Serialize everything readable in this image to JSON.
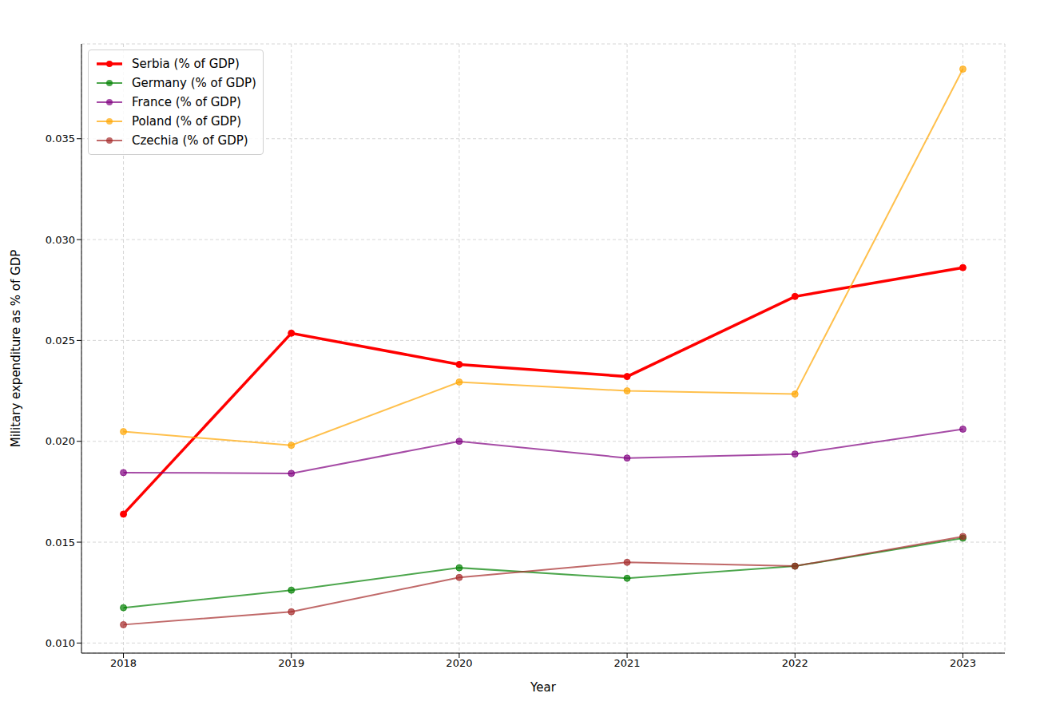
{
  "chart_data": {
    "type": "line",
    "x_label": "Year",
    "y_label": "Military expenditure as % of GDP",
    "x": [
      2018,
      2019,
      2020,
      2021,
      2022,
      2023
    ],
    "xlim": [
      2017.75,
      2023.25
    ],
    "xticks": [
      2018,
      2019,
      2020,
      2021,
      2022,
      2023
    ],
    "ylim": [
      0.0095,
      0.0397
    ],
    "yticks": [
      {
        "value": 0.01,
        "label": "0.010"
      },
      {
        "value": 0.015,
        "label": "0.015"
      },
      {
        "value": 0.02,
        "label": "0.020"
      },
      {
        "value": 0.025,
        "label": "0.025"
      },
      {
        "value": 0.03,
        "label": "0.030"
      },
      {
        "value": 0.035,
        "label": "0.035"
      }
    ],
    "grid": true,
    "legend": "upper left",
    "marker": "circle",
    "series": [
      {
        "name": "Serbia (% of GDP)",
        "color": "red",
        "line_style": "thick",
        "values": [
          0.01639,
          0.02536,
          0.02381,
          0.02321,
          0.02718,
          0.02861
        ]
      },
      {
        "name": "Germany (% of GDP)",
        "color": "green",
        "values": [
          0.01175,
          0.01262,
          0.01373,
          0.01321,
          0.01381,
          0.0152
        ]
      },
      {
        "name": "France (% of GDP)",
        "color": "purple",
        "values": [
          0.01845,
          0.01841,
          0.02,
          0.01917,
          0.01937,
          0.0206
        ]
      },
      {
        "name": "Poland (% of GDP)",
        "color": "orange",
        "values": [
          0.02048,
          0.0198,
          0.02294,
          0.0225,
          0.02234,
          0.03845
        ]
      },
      {
        "name": "Czechia (% of GDP)",
        "color": "brown",
        "values": [
          0.01091,
          0.01155,
          0.01325,
          0.014,
          0.01381,
          0.01528
        ]
      }
    ]
  }
}
